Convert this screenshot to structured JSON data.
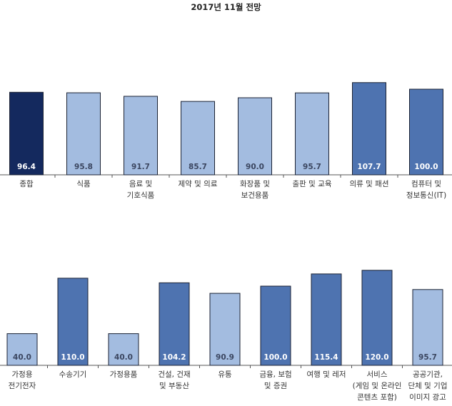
{
  "chart_data": [
    {
      "type": "bar",
      "title": "2017년 11월 전망",
      "categories": [
        [
          "종합"
        ],
        [
          "식품"
        ],
        [
          "음료 및",
          "기호식품"
        ],
        [
          "제약 및 의료"
        ],
        [
          "화장품 및",
          "보건용품"
        ],
        [
          "출판 및 교육"
        ],
        [
          "의류 및 패션"
        ],
        [
          "컴퓨터 및",
          "정보통신(IT)"
        ]
      ],
      "values": [
        96.4,
        95.8,
        91.7,
        85.7,
        90.0,
        95.7,
        107.7,
        100.0
      ],
      "value_labels": [
        "96.4",
        "95.8",
        "91.7",
        "85.7",
        "90.0",
        "95.7",
        "107.7",
        "100.0"
      ],
      "color_keys": [
        "dark",
        "light",
        "light",
        "light",
        "light",
        "light",
        "medium",
        "medium"
      ],
      "xlabel": "",
      "ylabel": "",
      "ylim": [
        0,
        110
      ],
      "grid": false
    },
    {
      "type": "bar",
      "categories": [
        [
          "가정용",
          "전기전자"
        ],
        [
          "수송기기"
        ],
        [
          "가정용품"
        ],
        [
          "건설, 건재",
          "및 부동산"
        ],
        [
          "유통"
        ],
        [
          "금융, 보험",
          "및 증권"
        ],
        [
          "여행 및 레저"
        ],
        [
          "서비스",
          "(게임 및 온라인",
          "콘텐츠 포함)"
        ],
        [
          "공공기관,",
          "단체 및 기업",
          "이미지 광고"
        ]
      ],
      "values": [
        40.0,
        110.0,
        40.0,
        104.2,
        90.9,
        100.0,
        115.4,
        120.0,
        95.7
      ],
      "value_labels": [
        "40.0",
        "110.0",
        "40.0",
        "104.2",
        "90.9",
        "100.0",
        "115.4",
        "120.0",
        "95.7"
      ],
      "color_keys": [
        "light",
        "medium",
        "light",
        "medium",
        "light",
        "medium",
        "medium",
        "medium",
        "light"
      ],
      "xlabel": "",
      "ylabel": "",
      "ylim": [
        0,
        125
      ],
      "grid": false
    }
  ],
  "colors": {
    "dark": "#14295e",
    "medium": "#4e73b0",
    "light": "#a3bce0",
    "dark_text": "#3b4660",
    "light_text": "#ffffff",
    "axis": "#555555"
  }
}
